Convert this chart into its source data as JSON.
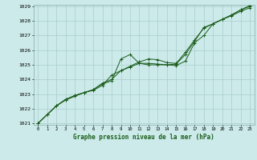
{
  "bg_color": "#cceaea",
  "grid_color": "#aacccc",
  "line_color": "#1a5c1a",
  "title": "Graphe pression niveau de la mer (hPa)",
  "xlabel_ticks": [
    0,
    1,
    2,
    3,
    4,
    5,
    6,
    7,
    8,
    9,
    10,
    11,
    12,
    13,
    14,
    15,
    16,
    17,
    18,
    19,
    20,
    21,
    22,
    23
  ],
  "ylim": [
    1021.0,
    1029.0
  ],
  "yticks": [
    1021,
    1022,
    1023,
    1024,
    1025,
    1026,
    1027,
    1028,
    1029
  ],
  "line1": [
    1021.0,
    1021.6,
    1022.2,
    1022.6,
    1022.9,
    1023.1,
    1023.3,
    1023.7,
    1023.9,
    1025.4,
    1025.7,
    1025.1,
    1025.1,
    1025.05,
    1025.0,
    1025.05,
    1025.7,
    1026.6,
    1027.55,
    1027.8,
    1028.1,
    1028.4,
    1028.75,
    1029.0
  ],
  "line2": [
    1021.0,
    1021.6,
    1022.2,
    1022.6,
    1022.85,
    1023.1,
    1023.25,
    1023.6,
    1024.3,
    1024.6,
    1024.85,
    1025.1,
    1025.0,
    1025.0,
    1025.0,
    1024.95,
    1025.25,
    1026.5,
    1027.0,
    1027.8,
    1028.1,
    1028.35,
    1028.65,
    1028.9
  ],
  "line3": [
    1021.0,
    1021.6,
    1022.2,
    1022.65,
    1022.9,
    1023.1,
    1023.3,
    1023.75,
    1024.0,
    1024.6,
    1024.9,
    1025.2,
    1025.4,
    1025.35,
    1025.15,
    1025.1,
    1025.85,
    1026.7,
    1027.5,
    1027.8,
    1028.1,
    1028.4,
    1028.75,
    1029.05
  ],
  "figsize": [
    3.2,
    2.0
  ],
  "dpi": 100
}
